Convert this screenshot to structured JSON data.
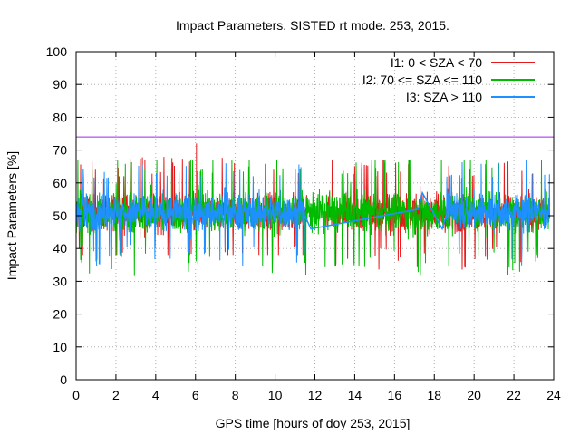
{
  "chart_data": {
    "type": "line",
    "title": "Impact Parameters. SISTED rt mode. 253, 2015.",
    "xlabel": "GPS time [hours of doy 253, 2015]",
    "ylabel": "Impact Parameters [%]",
    "xlim": [
      0,
      24
    ],
    "ylim": [
      0,
      100
    ],
    "x_ticks": [
      0,
      2,
      4,
      6,
      8,
      10,
      12,
      14,
      16,
      18,
      20,
      22,
      24
    ],
    "y_ticks": [
      0,
      10,
      20,
      30,
      40,
      50,
      60,
      70,
      80,
      90,
      100
    ],
    "grid": true,
    "legend_position": "top-right",
    "threshold_line": {
      "value": 74,
      "color": "#a020f0"
    },
    "series": [
      {
        "name": "I1: 0 < SZA < 70",
        "color": "#e41a1c",
        "noisy": true,
        "segments": [
          {
            "x_start": 0,
            "x_end": 11.6,
            "center": 51,
            "min": 38,
            "max": 72
          },
          {
            "x_start": 12.6,
            "x_end": 23.8,
            "center": 51,
            "min": 32,
            "max": 67
          }
        ],
        "peak": {
          "x": 6.05,
          "y": 72
        }
      },
      {
        "name": "I2: 70 <= SZA <= 110",
        "color": "#00bb00",
        "noisy": true,
        "segments": [
          {
            "x_start": 0,
            "x_end": 23.8,
            "center": 51,
            "min": 28,
            "max": 67
          }
        ]
      },
      {
        "name": "I3: SZA > 110",
        "color": "#1e90ff",
        "noisy": true,
        "segments": [
          {
            "x_start": 0,
            "x_end": 11.5,
            "center": 51,
            "min": 33,
            "max": 66
          },
          {
            "x_start": 18.6,
            "x_end": 23.8,
            "center": 51,
            "min": 33,
            "max": 67
          }
        ],
        "connector": [
          [
            11.5,
            50
          ],
          [
            11.8,
            46
          ],
          [
            17.2,
            52
          ],
          [
            17.4,
            57
          ],
          [
            18.4,
            46
          ],
          [
            18.6,
            50
          ]
        ]
      }
    ]
  }
}
